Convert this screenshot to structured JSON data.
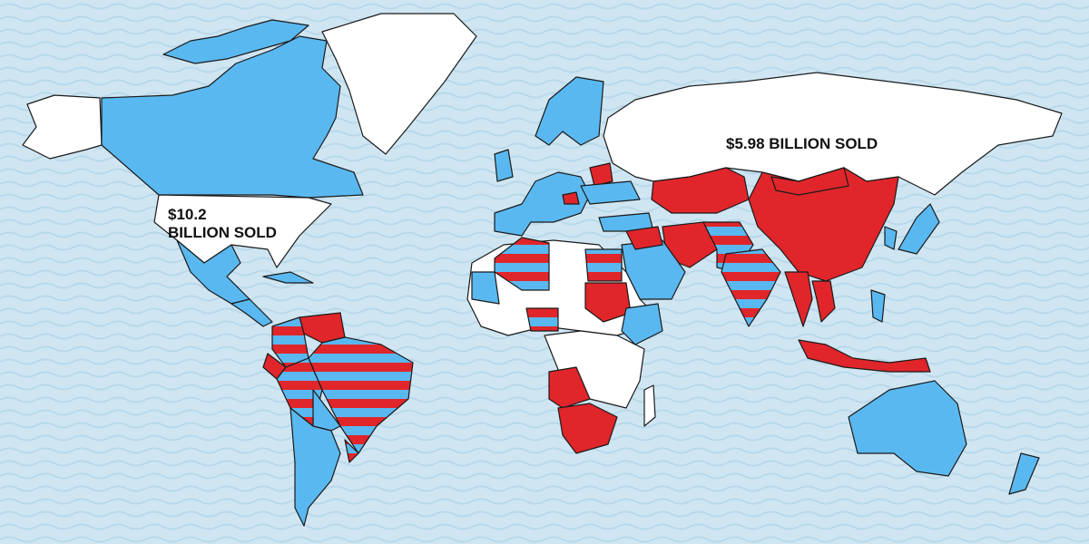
{
  "colors": {
    "ocean": "#cfe6f2",
    "wave": "#b9d8ea",
    "us_sales": "#5ab8f0",
    "russia_sales": "#e0262b",
    "both": "striped",
    "none": "#ffffff",
    "border": "#1a1a1a"
  },
  "labels": {
    "russia_line1": "$5.98 BILLION SOLD",
    "us_line1": "$10.2",
    "us_line2": "BILLION SOLD"
  }
}
